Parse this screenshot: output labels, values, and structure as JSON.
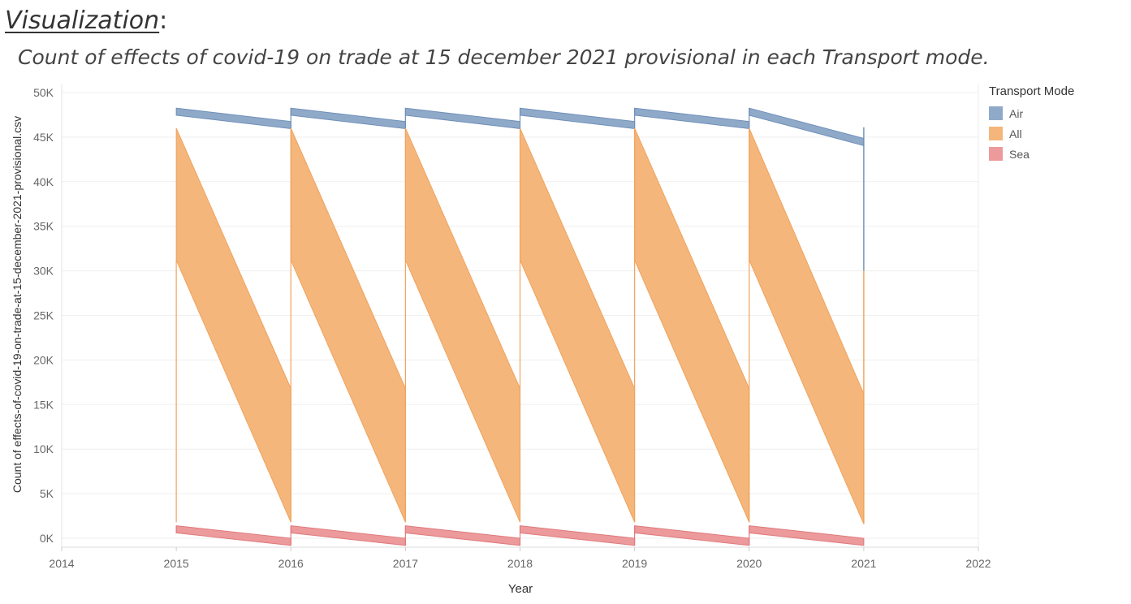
{
  "heading": {
    "word": "Visualization",
    "colon": ":"
  },
  "subtitle": "Count of effects of covid-19 on trade at 15 december 2021 provisional in each Transport mode.",
  "legend": {
    "title": "Transport Mode",
    "items": [
      {
        "label": "Air",
        "color": "#8fa9c9"
      },
      {
        "label": "All",
        "color": "#f4b67a"
      },
      {
        "label": "Sea",
        "color": "#ec9a9c"
      }
    ]
  },
  "chart_data": {
    "type": "area",
    "xlabel": "Year",
    "ylabel": "Count of effects-of-covid-19-on-trade-at-15-december-2021-provisional.csv",
    "xlim": [
      2014,
      2022
    ],
    "ylim": [
      -1000,
      51000
    ],
    "x_ticks": [
      "2014",
      "2015",
      "2016",
      "2017",
      "2018",
      "2019",
      "2020",
      "2021",
      "2022"
    ],
    "y_ticks": [
      {
        "value": 0,
        "label": "0K"
      },
      {
        "value": 5000,
        "label": "5K"
      },
      {
        "value": 10000,
        "label": "10K"
      },
      {
        "value": 15000,
        "label": "15K"
      },
      {
        "value": 20000,
        "label": "20K"
      },
      {
        "value": 25000,
        "label": "25K"
      },
      {
        "value": 30000,
        "label": "30K"
      },
      {
        "value": 35000,
        "label": "35K"
      },
      {
        "value": 40000,
        "label": "40K"
      },
      {
        "value": 45000,
        "label": "45K"
      },
      {
        "value": 50000,
        "label": "50K"
      }
    ],
    "grid": true,
    "legend_position": "right",
    "series": [
      {
        "name": "Air",
        "color": "#8fa9c9",
        "stroke": "#6f8fb8",
        "segments": [
          {
            "x": [
              2015,
              2016
            ],
            "low": [
              47450,
              45950
            ],
            "high": [
              48250,
              46750
            ]
          },
          {
            "x": [
              2016,
              2017
            ],
            "low": [
              47450,
              45950
            ],
            "high": [
              48250,
              46750
            ]
          },
          {
            "x": [
              2017,
              2018
            ],
            "low": [
              47450,
              45950
            ],
            "high": [
              48250,
              46750
            ]
          },
          {
            "x": [
              2018,
              2019
            ],
            "low": [
              47450,
              45950
            ],
            "high": [
              48250,
              46750
            ]
          },
          {
            "x": [
              2019,
              2020
            ],
            "low": [
              47450,
              45950
            ],
            "high": [
              48250,
              46750
            ]
          },
          {
            "x": [
              2020,
              2021
            ],
            "low": [
              47450,
              44050
            ],
            "high": [
              48250,
              44850
            ]
          }
        ],
        "end_line": {
          "x": 2021,
          "from": 30000,
          "to": 46100
        }
      },
      {
        "name": "All",
        "color": "#f4b67a",
        "stroke": "#f0a35e",
        "segments": [
          {
            "x": [
              2015,
              2016
            ],
            "low": [
              31200,
              1800
            ],
            "high": [
              46000,
              16800
            ]
          },
          {
            "x": [
              2016,
              2017
            ],
            "low": [
              31200,
              1800
            ],
            "high": [
              46000,
              16800
            ]
          },
          {
            "x": [
              2017,
              2018
            ],
            "low": [
              31200,
              1800
            ],
            "high": [
              46000,
              16800
            ]
          },
          {
            "x": [
              2018,
              2019
            ],
            "low": [
              31200,
              1800
            ],
            "high": [
              46000,
              16800
            ]
          },
          {
            "x": [
              2019,
              2020
            ],
            "low": [
              31200,
              1800
            ],
            "high": [
              46000,
              16800
            ]
          },
          {
            "x": [
              2020,
              2021
            ],
            "low": [
              31200,
              1600
            ],
            "high": [
              46000,
              16200
            ]
          }
        ],
        "start_line": {
          "x": 2015,
          "from": 1800,
          "to": 31200
        },
        "end_line": {
          "x": 2021,
          "from": 1600,
          "to": 30000
        }
      },
      {
        "name": "Sea",
        "color": "#ec9a9c",
        "stroke": "#e07a7c",
        "segments": [
          {
            "x": [
              2015,
              2016
            ],
            "low": [
              600,
              -800
            ],
            "high": [
              1400,
              0
            ]
          },
          {
            "x": [
              2016,
              2017
            ],
            "low": [
              600,
              -800
            ],
            "high": [
              1400,
              0
            ]
          },
          {
            "x": [
              2017,
              2018
            ],
            "low": [
              600,
              -800
            ],
            "high": [
              1400,
              0
            ]
          },
          {
            "x": [
              2018,
              2019
            ],
            "low": [
              600,
              -800
            ],
            "high": [
              1400,
              0
            ]
          },
          {
            "x": [
              2019,
              2020
            ],
            "low": [
              600,
              -800
            ],
            "high": [
              1400,
              0
            ]
          },
          {
            "x": [
              2020,
              2021
            ],
            "low": [
              600,
              -800
            ],
            "high": [
              1400,
              0
            ]
          }
        ],
        "start_line": {
          "x": 2015,
          "from": 600,
          "to": 1400
        }
      }
    ]
  }
}
